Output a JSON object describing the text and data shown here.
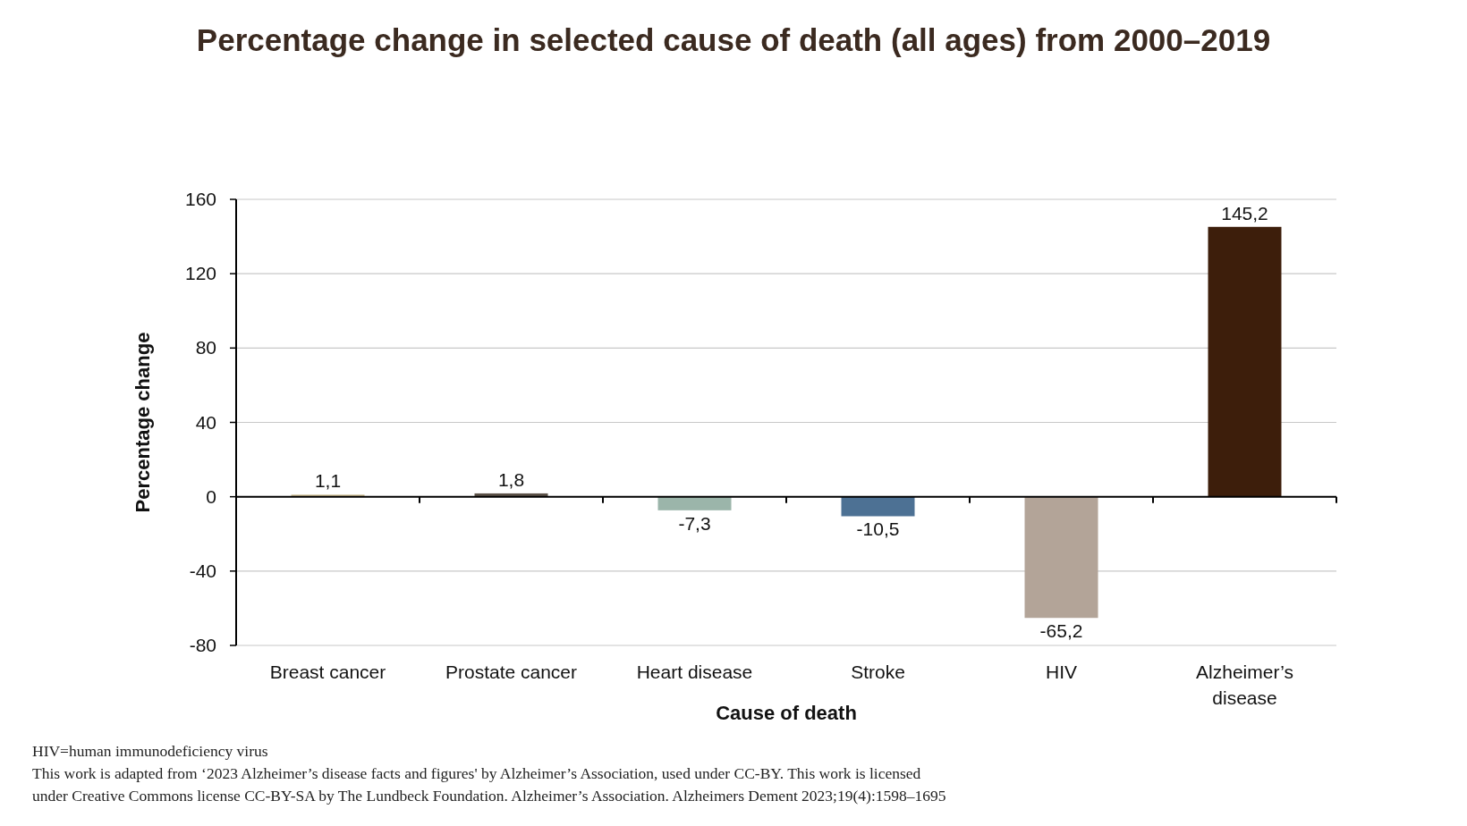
{
  "chart_data": {
    "type": "bar",
    "title": "Percentage change in selected cause of death (all ages) from 2000–2019",
    "xlabel": "Cause of death",
    "ylabel": "Percentage change",
    "categories": [
      "Breast cancer",
      "Prostate cancer",
      "Heart disease",
      "Stroke",
      "HIV",
      "Alzheimer’s disease"
    ],
    "values": [
      1.1,
      1.8,
      -7.3,
      -10.5,
      -65.2,
      145.2
    ],
    "colors": [
      "#c9b98c",
      "#5c5248",
      "#9bb5aa",
      "#4d7194",
      "#b3a498",
      "#3d1e0b"
    ],
    "value_labels": [
      "1,1",
      "1,8",
      "-7,3",
      "-10,5",
      "-65,2",
      "145,2"
    ],
    "ylim": [
      -80,
      160
    ],
    "yticks": [
      -80,
      -40,
      0,
      40,
      80,
      120,
      160
    ],
    "grid": "y",
    "annotations": [
      "HIV=human immunodeficiency virus",
      "This work is adapted from ‘2023 Alzheimer’s disease facts and figures' by Alzheimer’s Association, used under CC-BY. This work is licensed under Creative Commons license CC-BY-SA by The Lundbeck Foundation. Alzheimer’s Association. Alzheimers Dement 2023;19(4):1598–1695"
    ]
  }
}
